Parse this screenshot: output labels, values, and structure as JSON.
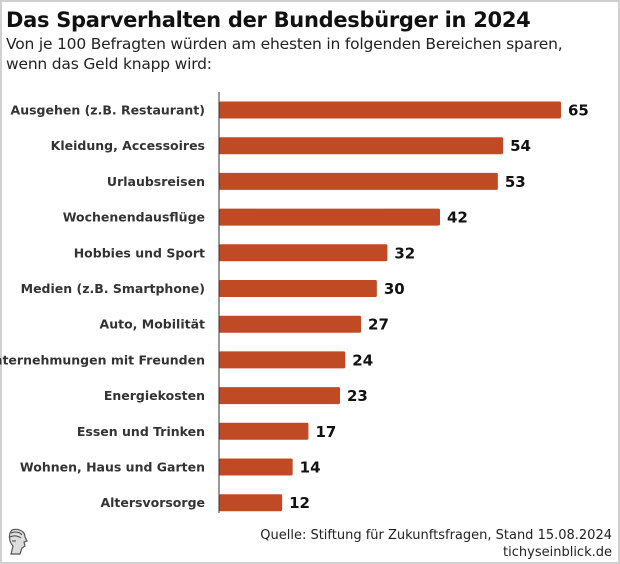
{
  "chart_data": {
    "type": "bar",
    "orientation": "horizontal",
    "title": "Das Sparverhalten der Bundesbürger in 2024",
    "subtitle": "Von je 100 Befragten würden am ehesten in folgenden Bereichen sparen, wenn das Geld knapp wird:",
    "categories": [
      "Ausgehen (z.B. Restaurant)",
      "Kleidung, Accessoires",
      "Urlaubsreisen",
      "Wochenendausflüge",
      "Hobbies und Sport",
      "Medien (z.B. Smartphone)",
      "Auto, Mobilität",
      "Unternehmungen mit Freunden",
      "Energiekosten",
      "Essen und Trinken",
      "Wohnen, Haus und Garten",
      "Altersvorsorge"
    ],
    "values": [
      65,
      54,
      53,
      42,
      32,
      30,
      27,
      24,
      23,
      17,
      14,
      12
    ],
    "xlim": [
      0,
      70
    ],
    "grid": false,
    "bar_color": "#bf4a24"
  },
  "footer": {
    "source": "Quelle: Stiftung für Zukunftsfragen, Stand 15.08.2024",
    "site": "tichyseinblick.de",
    "logo_icon": "greek-head-logo-icon"
  }
}
